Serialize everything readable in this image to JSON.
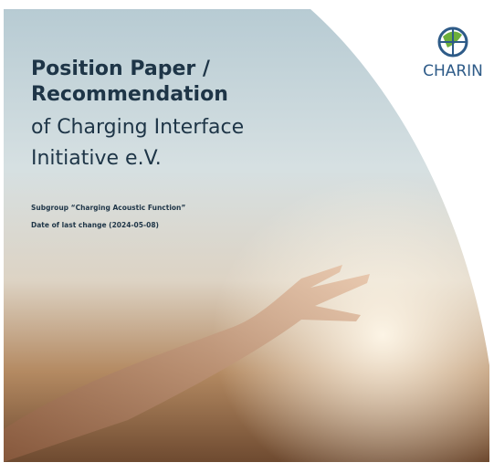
{
  "cover": {
    "title_bold": [
      "Position Paper /",
      "Recommendation"
    ],
    "title_regular": [
      "of Charging Interface",
      "Initiative e.V."
    ],
    "subgroup": "Subgroup “Charging Acoustic Function”",
    "date": "Date of last change (2024-05-08)",
    "logo": "CHARIN"
  }
}
